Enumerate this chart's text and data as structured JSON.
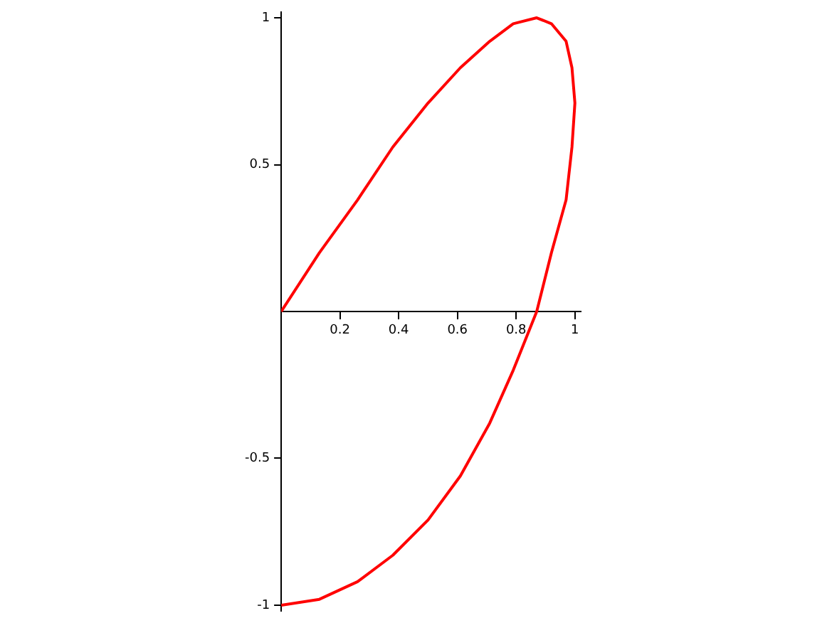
{
  "chart_data": {
    "type": "line",
    "xlim": [
      0,
      1.02
    ],
    "ylim": [
      -1.02,
      1.02
    ],
    "xticks": [
      0.2,
      0.4,
      0.6,
      0.8,
      1
    ],
    "yticks": [
      -1,
      -0.5,
      0.5,
      1
    ],
    "grid": false,
    "legend": false,
    "marker": "none",
    "line_style": "solid",
    "series": [
      {
        "color": "#ff0000",
        "x": [
          0,
          0.13,
          0.26,
          0.38,
          0.5,
          0.61,
          0.71,
          0.79,
          0.87,
          0.92,
          0.97,
          0.99,
          1,
          0.99,
          0.97,
          0.92,
          0.87,
          0.79,
          0.71,
          0.61,
          0.5,
          0.38,
          0.26,
          0.13,
          0
        ],
        "values": [
          0,
          0.2,
          0.38,
          0.56,
          0.71,
          0.83,
          0.92,
          0.98,
          1,
          0.98,
          0.92,
          0.83,
          0.71,
          0.56,
          0.38,
          0.2,
          0,
          -0.2,
          -0.38,
          -0.56,
          -0.71,
          -0.83,
          -0.92,
          -0.98,
          -1
        ]
      }
    ]
  }
}
